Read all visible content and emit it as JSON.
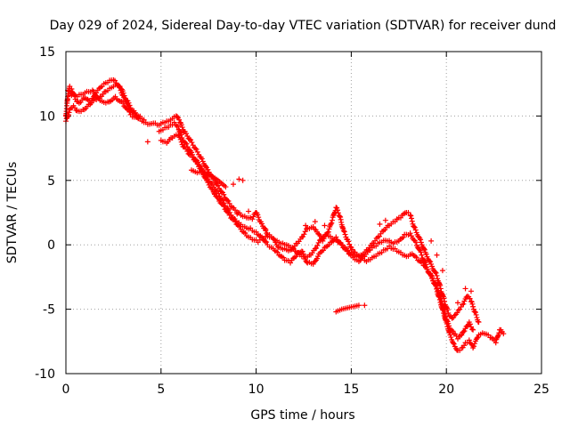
{
  "chart_data": {
    "type": "scatter",
    "title": "Day 029 of 2024, Sidereal Day-to-day VTEC variation (SDTVAR) for receiver dund",
    "xlabel": "GPS time / hours",
    "ylabel": "SDTVAR / TECUs",
    "xlim": [
      0,
      25
    ],
    "ylim": [
      -10,
      15
    ],
    "xticks": [
      "0",
      "5",
      "10",
      "15",
      "20",
      "25"
    ],
    "yticks": [
      "-10",
      "-5",
      "0",
      "5",
      "10",
      "15"
    ],
    "grid": true,
    "legend": "none",
    "marker": "plus",
    "color": "#ff0000",
    "series": [
      {
        "points": [
          [
            0.0,
            10.0
          ],
          [
            0.1,
            11.5
          ],
          [
            0.2,
            12.3
          ],
          [
            0.3,
            12.1
          ],
          [
            0.5,
            11.3
          ],
          [
            0.7,
            11.0
          ],
          [
            1.0,
            11.4
          ],
          [
            1.3,
            11.0
          ],
          [
            1.6,
            11.8
          ],
          [
            1.9,
            12.3
          ],
          [
            2.2,
            12.6
          ],
          [
            2.5,
            12.8
          ],
          [
            2.8,
            12.3
          ],
          [
            3.0,
            11.6
          ],
          [
            3.3,
            10.8
          ],
          [
            3.6,
            10.2
          ],
          [
            3.9,
            9.8
          ],
          [
            4.2,
            9.5
          ],
          [
            4.8,
            9.3
          ],
          [
            5.1,
            9.5
          ],
          [
            5.4,
            9.6
          ],
          [
            5.6,
            9.8
          ],
          [
            5.8,
            10.0
          ],
          [
            6.0,
            9.5
          ],
          [
            6.2,
            8.8
          ],
          [
            6.5,
            8.2
          ],
          [
            6.8,
            7.5
          ],
          [
            7.1,
            6.8
          ],
          [
            7.4,
            6.0
          ],
          [
            7.7,
            5.3
          ],
          [
            8.0,
            4.6
          ],
          [
            8.3,
            3.9
          ],
          [
            8.6,
            3.2
          ],
          [
            8.9,
            2.7
          ],
          [
            9.2,
            2.3
          ],
          [
            9.5,
            2.1
          ],
          [
            9.8,
            2.0
          ],
          [
            10.0,
            2.5
          ],
          [
            10.2,
            1.8
          ],
          [
            10.4,
            1.3
          ],
          [
            10.6,
            0.8
          ],
          [
            10.9,
            0.5
          ],
          [
            11.2,
            -0.2
          ],
          [
            11.5,
            -0.3
          ],
          [
            11.8,
            -0.4
          ],
          [
            12.1,
            0.1
          ],
          [
            12.4,
            0.6
          ],
          [
            12.7,
            1.3
          ],
          [
            13.0,
            1.4
          ],
          [
            13.2,
            1.0
          ],
          [
            13.5,
            0.3
          ],
          [
            13.8,
            1.0
          ],
          [
            14.0,
            1.9
          ],
          [
            14.2,
            2.9
          ],
          [
            14.4,
            2.2
          ],
          [
            14.6,
            1.1
          ],
          [
            14.8,
            0.4
          ],
          [
            15.0,
            -0.2
          ],
          [
            15.2,
            -0.6
          ],
          [
            15.5,
            -0.8
          ],
          [
            15.8,
            -0.4
          ],
          [
            16.1,
            0.1
          ],
          [
            16.4,
            0.6
          ],
          [
            16.7,
            1.1
          ],
          [
            17.0,
            1.5
          ],
          [
            17.3,
            1.8
          ],
          [
            17.6,
            2.1
          ],
          [
            17.9,
            2.5
          ],
          [
            18.1,
            2.3
          ],
          [
            18.3,
            1.4
          ],
          [
            18.6,
            0.5
          ],
          [
            18.9,
            -0.6
          ],
          [
            19.2,
            -1.5
          ],
          [
            19.5,
            -2.4
          ],
          [
            19.7,
            -3.4
          ],
          [
            19.9,
            -4.4
          ],
          [
            20.1,
            -5.3
          ],
          [
            20.3,
            -5.7
          ],
          [
            20.5,
            -5.4
          ],
          [
            20.7,
            -5.0
          ],
          [
            20.9,
            -4.6
          ],
          [
            21.1,
            -4.0
          ],
          [
            21.3,
            -4.4
          ],
          [
            21.5,
            -5.2
          ],
          [
            21.7,
            -6.0
          ]
        ]
      },
      {
        "points": [
          [
            0.0,
            9.6
          ],
          [
            0.2,
            10.5
          ],
          [
            0.4,
            10.8
          ],
          [
            0.6,
            10.4
          ],
          [
            0.9,
            10.5
          ],
          [
            1.2,
            10.9
          ],
          [
            1.5,
            11.3
          ],
          [
            1.8,
            11.5
          ],
          [
            2.1,
            11.9
          ],
          [
            2.4,
            12.2
          ],
          [
            2.7,
            12.4
          ],
          [
            2.9,
            12.1
          ],
          [
            3.2,
            11.2
          ],
          [
            3.5,
            10.4
          ],
          [
            3.8,
            10.0
          ],
          [
            4.1,
            9.7
          ],
          [
            4.9,
            8.8
          ],
          [
            5.2,
            9.1
          ],
          [
            5.5,
            9.3
          ],
          [
            5.7,
            9.5
          ],
          [
            5.9,
            9.2
          ],
          [
            6.1,
            8.3
          ],
          [
            6.4,
            7.6
          ],
          [
            6.7,
            6.8
          ],
          [
            7.0,
            6.2
          ],
          [
            7.3,
            5.4
          ],
          [
            7.6,
            4.8
          ],
          [
            7.9,
            4.2
          ],
          [
            8.2,
            3.5
          ],
          [
            8.5,
            2.8
          ],
          [
            8.8,
            2.1
          ],
          [
            9.1,
            1.7
          ],
          [
            9.4,
            1.4
          ],
          [
            9.7,
            1.3
          ],
          [
            10.0,
            1.0
          ],
          [
            10.3,
            0.6
          ],
          [
            10.6,
            0.0
          ],
          [
            10.9,
            -0.3
          ],
          [
            11.2,
            -0.8
          ],
          [
            11.5,
            -1.2
          ],
          [
            11.8,
            -1.4
          ],
          [
            12.1,
            -0.9
          ],
          [
            12.4,
            -0.5
          ],
          [
            12.7,
            -1.4
          ],
          [
            13.0,
            -1.5
          ],
          [
            13.3,
            -0.7
          ],
          [
            13.6,
            -0.2
          ],
          [
            13.9,
            0.2
          ],
          [
            14.2,
            0.6
          ],
          [
            14.5,
            0.0
          ],
          [
            14.8,
            -0.5
          ],
          [
            15.1,
            -1.0
          ],
          [
            15.4,
            -1.3
          ],
          [
            15.7,
            -0.9
          ],
          [
            16.0,
            -0.4
          ],
          [
            16.3,
            -0.1
          ],
          [
            16.6,
            0.2
          ],
          [
            16.9,
            0.3
          ],
          [
            17.2,
            0.1
          ],
          [
            17.5,
            0.3
          ],
          [
            17.8,
            0.8
          ],
          [
            18.1,
            0.9
          ],
          [
            18.4,
            0.2
          ],
          [
            18.7,
            -0.8
          ],
          [
            19.0,
            -1.9
          ],
          [
            19.3,
            -2.8
          ],
          [
            19.6,
            -3.7
          ],
          [
            19.8,
            -4.7
          ],
          [
            20.0,
            -5.8
          ],
          [
            20.2,
            -6.6
          ],
          [
            20.4,
            -6.9
          ],
          [
            20.6,
            -7.3
          ],
          [
            20.8,
            -7.0
          ],
          [
            21.0,
            -6.5
          ],
          [
            21.2,
            -6.0
          ],
          [
            21.4,
            -6.6
          ]
        ]
      },
      {
        "points": [
          [
            0.1,
            12.0
          ],
          [
            0.3,
            11.6
          ],
          [
            0.6,
            11.5
          ],
          [
            1.0,
            11.8
          ],
          [
            1.4,
            12.0
          ],
          [
            1.8,
            11.2
          ],
          [
            2.2,
            11.1
          ],
          [
            2.6,
            11.5
          ],
          [
            3.0,
            11.0
          ],
          [
            3.4,
            10.1
          ],
          [
            3.8,
            9.8
          ],
          [
            5.0,
            8.1
          ],
          [
            5.3,
            7.9
          ],
          [
            5.6,
            8.3
          ],
          [
            5.9,
            8.5
          ],
          [
            6.2,
            7.6
          ],
          [
            6.5,
            7.0
          ],
          [
            6.8,
            6.5
          ],
          [
            7.1,
            5.9
          ],
          [
            7.4,
            5.0
          ],
          [
            7.7,
            4.3
          ],
          [
            8.0,
            3.6
          ],
          [
            8.3,
            3.0
          ],
          [
            8.6,
            2.3
          ],
          [
            8.9,
            1.8
          ],
          [
            9.2,
            1.2
          ],
          [
            9.5,
            0.7
          ],
          [
            9.8,
            0.4
          ],
          [
            10.1,
            0.2
          ],
          [
            10.4,
            0.5
          ],
          [
            10.7,
            0.6
          ],
          [
            11.0,
            0.3
          ],
          [
            11.3,
            0.1
          ],
          [
            11.6,
            0.0
          ],
          [
            11.9,
            -0.2
          ],
          [
            12.2,
            -0.6
          ],
          [
            12.5,
            -0.9
          ],
          [
            12.8,
            -0.8
          ],
          [
            13.1,
            -0.3
          ],
          [
            13.4,
            0.4
          ],
          [
            13.7,
            0.8
          ],
          [
            14.0,
            0.5
          ],
          [
            14.3,
            0.2
          ],
          [
            14.6,
            -0.2
          ],
          [
            14.9,
            -0.6
          ],
          [
            15.2,
            -0.9
          ],
          [
            15.5,
            -1.0
          ],
          [
            15.8,
            -1.3
          ],
          [
            16.1,
            -1.0
          ],
          [
            16.4,
            -0.7
          ],
          [
            16.7,
            -0.4
          ],
          [
            17.0,
            -0.1
          ],
          [
            17.3,
            -0.3
          ],
          [
            17.6,
            -0.6
          ],
          [
            17.9,
            -0.9
          ],
          [
            18.2,
            -0.7
          ],
          [
            18.5,
            -1.2
          ],
          [
            18.8,
            -1.6
          ],
          [
            19.1,
            -2.2
          ],
          [
            19.4,
            -3.0
          ],
          [
            19.6,
            -4.0
          ],
          [
            19.8,
            -5.0
          ],
          [
            20.0,
            -6.0
          ],
          [
            20.2,
            -7.0
          ],
          [
            20.4,
            -7.7
          ],
          [
            20.6,
            -8.2
          ],
          [
            20.8,
            -8.0
          ],
          [
            21.0,
            -7.6
          ],
          [
            21.2,
            -7.4
          ],
          [
            21.4,
            -8.0
          ],
          [
            21.7,
            -7.0
          ],
          [
            22.0,
            -6.9
          ],
          [
            22.3,
            -7.2
          ],
          [
            22.6,
            -7.6
          ],
          [
            22.8,
            -6.6
          ],
          [
            23.0,
            -6.9
          ]
        ]
      },
      {
        "points": [
          [
            4.3,
            8.0
          ],
          [
            6.6,
            5.8
          ],
          [
            6.9,
            5.6
          ],
          [
            7.2,
            5.7
          ],
          [
            7.5,
            5.5
          ],
          [
            8.0,
            5.0
          ],
          [
            8.4,
            4.5
          ],
          [
            8.8,
            4.7
          ],
          [
            9.1,
            5.1
          ],
          [
            9.3,
            5.0
          ],
          [
            7.8,
            4.0
          ],
          [
            8.1,
            3.5
          ],
          [
            9.0,
            2.4
          ],
          [
            9.6,
            2.6
          ],
          [
            10.5,
            1.2
          ],
          [
            14.2,
            -5.2
          ],
          [
            14.5,
            -5.0
          ],
          [
            14.8,
            -4.9
          ],
          [
            15.1,
            -4.8
          ],
          [
            15.4,
            -4.7
          ],
          [
            15.7,
            -4.7
          ],
          [
            12.6,
            1.5
          ],
          [
            13.1,
            1.8
          ],
          [
            13.6,
            1.5
          ],
          [
            16.5,
            1.6
          ],
          [
            16.8,
            1.9
          ],
          [
            17.4,
            2.0
          ],
          [
            19.2,
            0.3
          ],
          [
            19.5,
            -0.8
          ],
          [
            19.8,
            -2.0
          ],
          [
            20.6,
            -4.5
          ],
          [
            21.0,
            -3.4
          ],
          [
            21.3,
            -3.6
          ]
        ]
      }
    ]
  }
}
